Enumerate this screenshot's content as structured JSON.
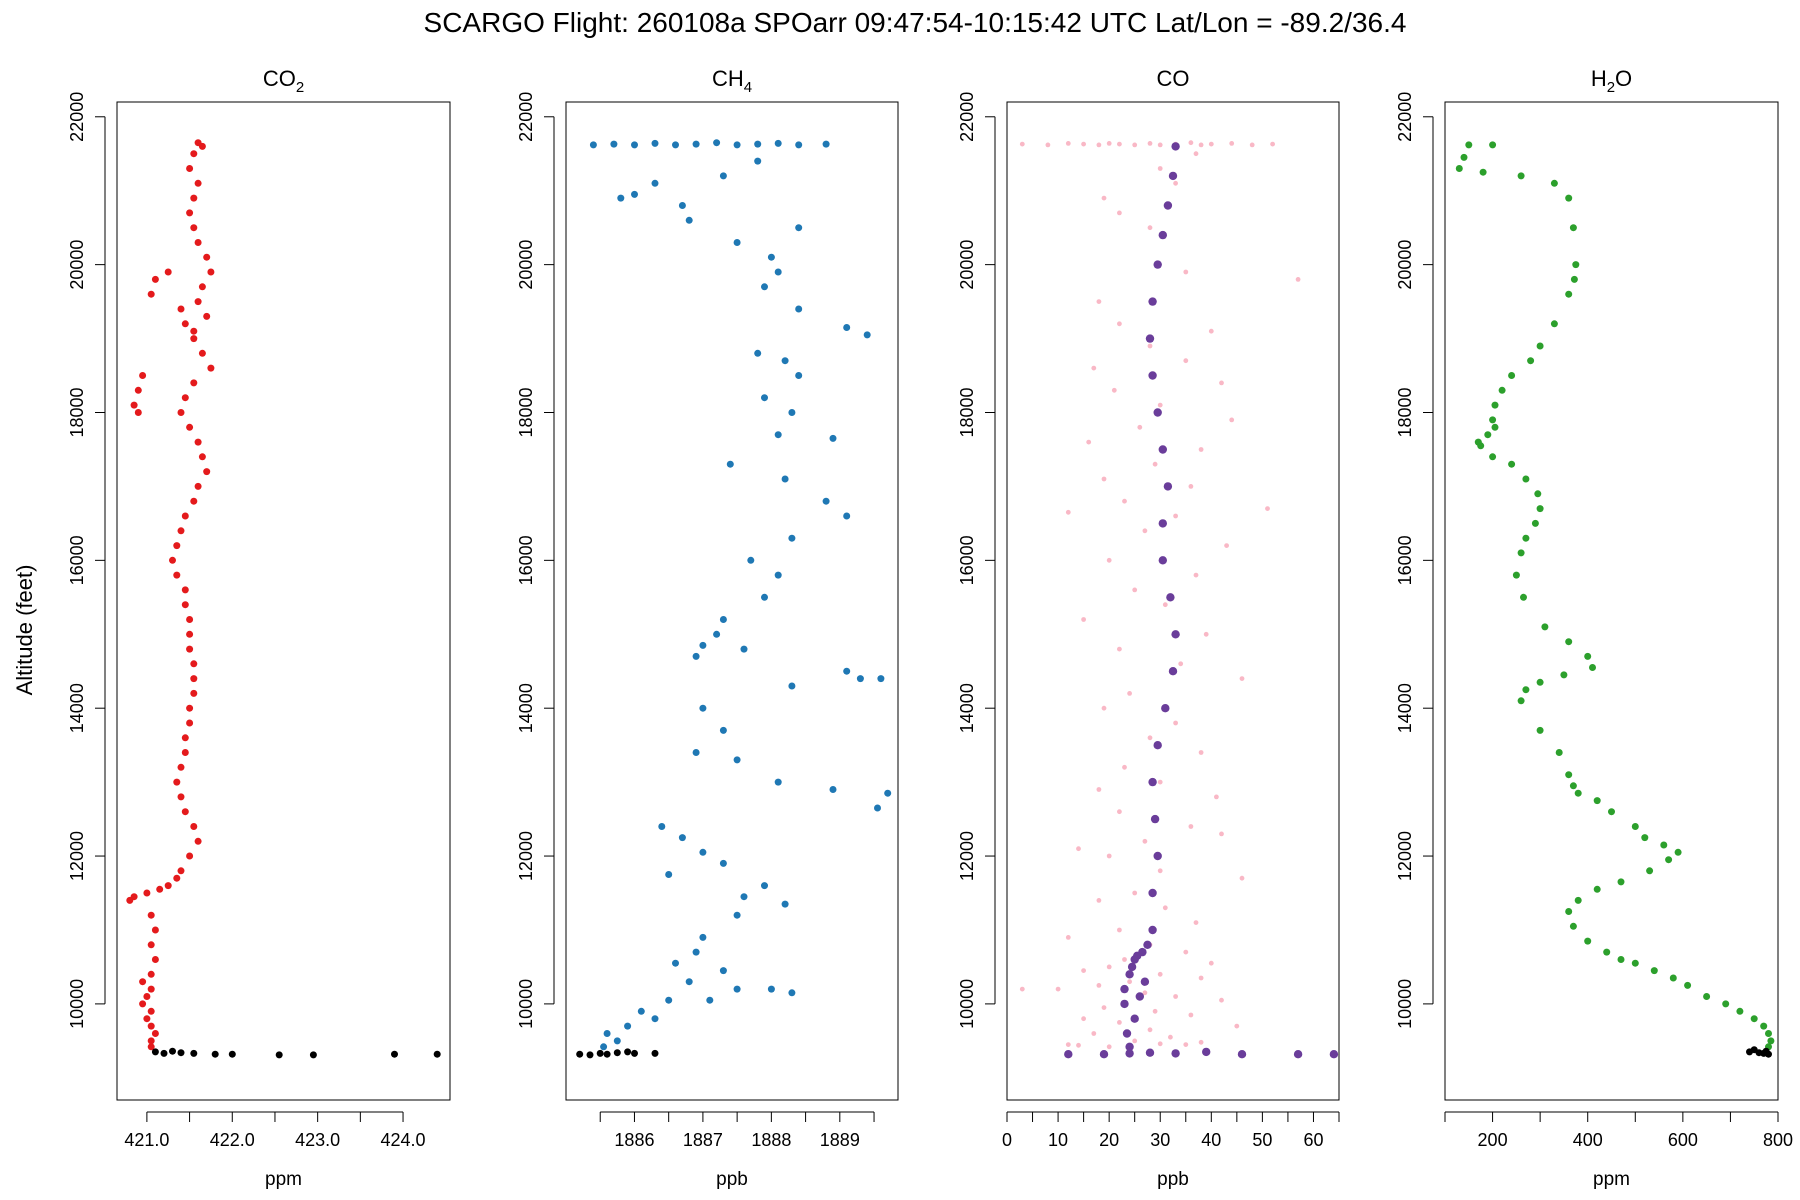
{
  "title": "SCARGO Flight: 260108a  SPOarr  09:47:54-10:15:42 UTC  Lat/Lon = -89.2/36.4",
  "ylabel": "Altitude (feet)",
  "colors": {
    "co2": "#e41a1c",
    "ch4": "#1f78b4",
    "co_raw": "#f9b8c6",
    "co_smooth": "#6a3d9a",
    "h2o": "#2ca02c",
    "ground": "#000000"
  },
  "chart_data": [
    {
      "type": "scatter",
      "title_main": "CO",
      "title_sub": "2",
      "xlabel": "ppm",
      "xlim": [
        420.65,
        424.55
      ],
      "ylim": [
        8700,
        22200
      ],
      "xticks": [
        "421.0",
        "422.0",
        "423.0",
        "424.0"
      ],
      "minor_xticks": [
        421.5,
        422.5,
        423.5
      ],
      "yticks": [
        "10000",
        "12000",
        "14000",
        "16000",
        "18000",
        "20000",
        "22000"
      ],
      "series": [
        {
          "color": "co2",
          "x": [
            421.6,
            421.65,
            421.55,
            421.5,
            421.6,
            421.55,
            421.5,
            421.55,
            421.6,
            421.7,
            421.75,
            421.65,
            421.6,
            421.7,
            421.55,
            421.25,
            421.1,
            421.05,
            421.4,
            421.45,
            421.55,
            421.65,
            421.75,
            421.55,
            421.45,
            420.95,
            420.9,
            420.85,
            420.9,
            421.4,
            421.5,
            421.6,
            421.65,
            421.7,
            421.6,
            421.55,
            421.45,
            421.4,
            421.35,
            421.3,
            421.35,
            421.45,
            421.45,
            421.5,
            421.5,
            421.5,
            421.55,
            421.55,
            421.55,
            421.5,
            421.5,
            421.45,
            421.45,
            421.4,
            421.35,
            421.4,
            421.45,
            421.55,
            421.6,
            421.5,
            421.4,
            421.35,
            421.25,
            421.15,
            421.0,
            420.85,
            420.8,
            421.05,
            421.1,
            421.05,
            421.1,
            421.05,
            420.95,
            421.05,
            421.0,
            420.95,
            421.05,
            421.0,
            421.05,
            421.1,
            421.05,
            421.05
          ],
          "y": [
            21650,
            21600,
            21500,
            21300,
            21100,
            20900,
            20700,
            20500,
            20300,
            20100,
            19900,
            19700,
            19500,
            19300,
            19100,
            19900,
            19800,
            19600,
            19400,
            19200,
            19000,
            18800,
            18600,
            18400,
            18200,
            18500,
            18300,
            18100,
            18000,
            18000,
            17800,
            17600,
            17400,
            17200,
            17000,
            16800,
            16600,
            16400,
            16200,
            16000,
            15800,
            15600,
            15400,
            15200,
            15000,
            14800,
            14600,
            14400,
            14200,
            14000,
            13800,
            13600,
            13400,
            13200,
            13000,
            12800,
            12600,
            12400,
            12200,
            12000,
            11800,
            11700,
            11600,
            11550,
            11500,
            11450,
            11400,
            11200,
            11000,
            10800,
            10600,
            10400,
            10300,
            10200,
            10100,
            10000,
            9900,
            9800,
            9700,
            9600,
            9500,
            9420
          ]
        },
        {
          "color": "ground",
          "x": [
            421.1,
            421.2,
            421.3,
            421.4,
            421.55,
            421.8,
            422.0,
            422.55,
            422.95,
            423.9,
            424.4
          ],
          "y": [
            9350,
            9330,
            9360,
            9340,
            9330,
            9320,
            9320,
            9310,
            9310,
            9320,
            9320
          ]
        }
      ]
    },
    {
      "type": "scatter",
      "title_main": "CH",
      "title_sub": "4",
      "xlabel": "ppb",
      "xlim": [
        1885.0,
        1889.85
      ],
      "ylim": [
        8700,
        22200
      ],
      "xticks": [
        "1886",
        "1887",
        "1888",
        "1889"
      ],
      "minor_xticks": [
        1885.5,
        1886.5,
        1887.5,
        1888.5,
        1889.5
      ],
      "yticks": [
        "10000",
        "12000",
        "14000",
        "16000",
        "18000",
        "20000",
        "22000"
      ],
      "series": [
        {
          "color": "ch4",
          "x": [
            1885.4,
            1885.7,
            1886.0,
            1886.3,
            1886.6,
            1886.9,
            1887.2,
            1887.5,
            1887.8,
            1888.1,
            1888.4,
            1888.8,
            1886.3,
            1885.8,
            1886.0,
            1886.7,
            1886.8,
            1887.8,
            1887.3,
            1887.5,
            1888.0,
            1888.4,
            1887.9,
            1888.1,
            1888.4,
            1889.1,
            1889.4,
            1887.8,
            1888.2,
            1888.4,
            1887.9,
            1888.3,
            1888.1,
            1888.9,
            1887.4,
            1888.2,
            1888.8,
            1889.1,
            1888.3,
            1887.7,
            1888.1,
            1887.9,
            1887.3,
            1887.2,
            1887.0,
            1886.9,
            1887.6,
            1888.3,
            1889.1,
            1889.3,
            1889.6,
            1887.0,
            1887.3,
            1886.9,
            1887.5,
            1888.1,
            1888.9,
            1889.7,
            1889.55,
            1886.4,
            1886.7,
            1887.0,
            1887.3,
            1886.5,
            1887.6,
            1887.9,
            1888.2,
            1887.5,
            1887.0,
            1886.9,
            1886.6,
            1887.3,
            1886.8,
            1887.5,
            1888.0,
            1888.3,
            1887.1,
            1886.5,
            1886.1,
            1886.3,
            1885.9,
            1885.6,
            1885.75,
            1885.55
          ],
          "y": [
            21620,
            21630,
            21620,
            21640,
            21620,
            21630,
            21650,
            21620,
            21630,
            21640,
            21620,
            21630,
            21100,
            20900,
            20950,
            20800,
            20600,
            21400,
            21200,
            20300,
            20100,
            20500,
            19700,
            19900,
            19400,
            19150,
            19050,
            18800,
            18700,
            18500,
            18200,
            18000,
            17700,
            17650,
            17300,
            17100,
            16800,
            16600,
            16300,
            16000,
            15800,
            15500,
            15200,
            15000,
            14850,
            14700,
            14800,
            14300,
            14500,
            14400,
            14400,
            14000,
            13700,
            13400,
            13300,
            13000,
            12900,
            12850,
            12650,
            12400,
            12250,
            12050,
            11900,
            11750,
            11450,
            11600,
            11350,
            11200,
            10900,
            10700,
            10550,
            10450,
            10300,
            10200,
            10200,
            10150,
            10050,
            10050,
            9900,
            9800,
            9700,
            9600,
            9500,
            9420
          ]
        },
        {
          "color": "ground",
          "x": [
            1885.2,
            1885.35,
            1885.5,
            1885.6,
            1885.75,
            1885.9,
            1886.0,
            1886.3
          ],
          "y": [
            9320,
            9310,
            9330,
            9320,
            9340,
            9350,
            9330,
            9330
          ]
        }
      ]
    },
    {
      "type": "scatter",
      "title_main": "CO",
      "title_sub": "",
      "xlabel": "ppb",
      "xlim": [
        0,
        65
      ],
      "ylim": [
        8700,
        22200
      ],
      "xticks": [
        "0",
        "10",
        "20",
        "30",
        "40",
        "50",
        "60"
      ],
      "minor_xticks": [
        5,
        15,
        25,
        35,
        45,
        55,
        65
      ],
      "yticks": [
        "10000",
        "12000",
        "14000",
        "16000",
        "18000",
        "20000",
        "22000"
      ],
      "series": [
        {
          "color": "co_raw",
          "x": [
            3,
            8,
            12,
            15,
            18,
            20,
            22,
            25,
            28,
            30,
            33,
            36,
            38,
            40,
            44,
            48,
            52,
            37,
            30,
            33,
            19,
            22,
            28,
            57,
            35,
            18,
            22,
            40,
            28,
            35,
            17,
            42,
            21,
            30,
            44,
            26,
            16,
            38,
            29,
            19,
            36,
            23,
            33,
            12,
            51,
            27,
            43,
            20,
            37,
            25,
            31,
            15,
            39,
            22,
            34,
            46,
            24,
            19,
            33,
            28,
            38,
            23,
            30,
            18,
            41,
            22,
            36,
            27,
            14,
            42,
            20,
            30,
            46,
            25,
            18,
            31,
            37,
            22,
            12,
            28,
            35,
            23,
            40,
            20,
            15,
            30,
            38,
            24,
            18,
            10,
            27,
            33,
            42,
            23,
            19,
            3,
            29,
            36,
            15,
            22,
            45,
            28,
            17,
            32,
            25,
            12,
            38,
            20,
            30,
            14,
            24,
            35
          ],
          "y": [
            21630,
            21620,
            21640,
            21630,
            21620,
            21640,
            21630,
            21620,
            21640,
            21620,
            21630,
            21650,
            21620,
            21630,
            21640,
            21620,
            21630,
            21500,
            21300,
            21100,
            20900,
            20700,
            20500,
            19800,
            19900,
            19500,
            19200,
            19100,
            18900,
            18700,
            18600,
            18400,
            18300,
            18100,
            17900,
            17800,
            17600,
            17500,
            17300,
            17100,
            17000,
            16800,
            16600,
            16650,
            16700,
            16400,
            16200,
            16000,
            15800,
            15600,
            15400,
            15200,
            15000,
            14800,
            14600,
            14400,
            14200,
            14000,
            13800,
            13600,
            13400,
            13200,
            13000,
            12900,
            12800,
            12600,
            12400,
            12200,
            12100,
            12300,
            12000,
            11800,
            11700,
            11500,
            11400,
            11300,
            11100,
            11000,
            10900,
            10800,
            10700,
            10600,
            10550,
            10500,
            10450,
            10400,
            10350,
            10300,
            10250,
            10200,
            10150,
            10100,
            10050,
            10000,
            9950,
            10200,
            9900,
            9850,
            9800,
            9750,
            9700,
            9650,
            9600,
            9550,
            9500,
            9450,
            9480,
            9420,
            9460,
            9440,
            9430,
            9450
          ]
        },
        {
          "color": "co_smooth",
          "x": [
            33,
            32.5,
            31.5,
            30.5,
            29.5,
            28.5,
            28,
            28.5,
            29.5,
            30.5,
            31.5,
            30.5,
            30.5,
            32,
            33,
            32.5,
            31,
            29.5,
            28.5,
            29,
            29.5,
            28.5,
            28.5,
            27.5,
            26.5,
            25.5,
            25,
            24.5,
            24,
            27,
            23,
            26,
            23,
            25,
            23.5,
            24
          ],
          "y": [
            21600,
            21200,
            20800,
            20400,
            20000,
            19500,
            19000,
            18500,
            18000,
            17500,
            17000,
            16500,
            16000,
            15500,
            15000,
            14500,
            14000,
            13500,
            13000,
            12500,
            12000,
            11500,
            11000,
            10800,
            10700,
            10650,
            10600,
            10500,
            10400,
            10300,
            10200,
            10100,
            10000,
            9800,
            9600,
            9420
          ]
        },
        {
          "color": "co_smooth",
          "x": [
            12,
            19,
            24,
            28,
            33,
            39,
            46,
            57,
            64
          ],
          "y": [
            9320,
            9320,
            9330,
            9340,
            9330,
            9350,
            9320,
            9320,
            9320
          ]
        }
      ]
    },
    {
      "type": "scatter",
      "title_main": "H",
      "title_sub": "2",
      "title_end": "O",
      "xlabel": "ppm",
      "xlim": [
        100,
        800
      ],
      "ylim": [
        8700,
        22200
      ],
      "xticks": [
        "200",
        "400",
        "600",
        "800"
      ],
      "minor_xticks": [
        100,
        300,
        500,
        700
      ],
      "yticks": [
        "10000",
        "12000",
        "14000",
        "16000",
        "18000",
        "20000",
        "22000"
      ],
      "series": [
        {
          "color": "h2o",
          "x": [
            150,
            200,
            140,
            130,
            180,
            260,
            330,
            360,
            370,
            375,
            372,
            360,
            330,
            300,
            280,
            240,
            220,
            205,
            200,
            205,
            190,
            170,
            175,
            200,
            240,
            270,
            295,
            300,
            290,
            270,
            260,
            250,
            265,
            310,
            360,
            400,
            410,
            350,
            300,
            270,
            260,
            300,
            340,
            360,
            370,
            380,
            420,
            450,
            500,
            520,
            560,
            590,
            570,
            530,
            470,
            420,
            380,
            360,
            370,
            400,
            440,
            470,
            500,
            540,
            580,
            610,
            650,
            690,
            720,
            750,
            770,
            780,
            785,
            780
          ],
          "y": [
            21620,
            21620,
            21450,
            21300,
            21250,
            21200,
            21100,
            20900,
            20500,
            20000,
            19800,
            19600,
            19200,
            18900,
            18700,
            18500,
            18300,
            18100,
            17900,
            17800,
            17700,
            17600,
            17550,
            17400,
            17300,
            17100,
            16900,
            16700,
            16500,
            16300,
            16100,
            15800,
            15500,
            15100,
            14900,
            14700,
            14550,
            14450,
            14350,
            14250,
            14100,
            13700,
            13400,
            13100,
            12950,
            12850,
            12750,
            12600,
            12400,
            12250,
            12150,
            12050,
            11950,
            11800,
            11650,
            11550,
            11400,
            11250,
            11050,
            10850,
            10700,
            10600,
            10550,
            10450,
            10350,
            10250,
            10100,
            10000,
            9900,
            9800,
            9700,
            9600,
            9500,
            9420
          ]
        },
        {
          "color": "ground",
          "x": [
            740,
            750,
            760,
            770,
            775,
            780
          ],
          "y": [
            9350,
            9380,
            9340,
            9330,
            9360,
            9320
          ]
        }
      ]
    }
  ]
}
